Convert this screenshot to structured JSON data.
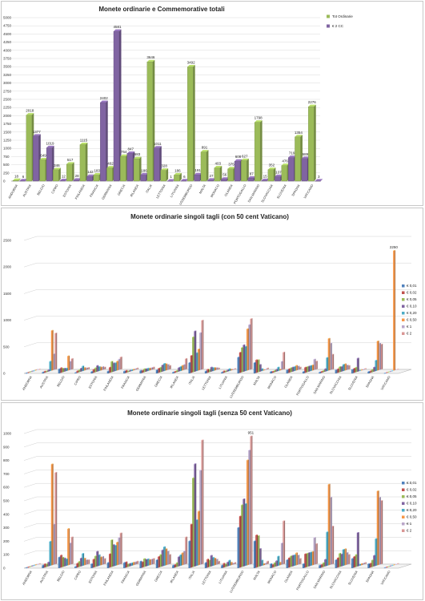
{
  "chart_data": [
    {
      "type": "bar",
      "title": "Monete ordinarie e Commemorative totali",
      "ylim": [
        0,
        5000
      ],
      "yticks": [
        0,
        250,
        500,
        750,
        1000,
        1250,
        1500,
        1750,
        2000,
        2250,
        2500,
        2750,
        3000,
        3250,
        3500,
        3750,
        4000,
        4250,
        4500,
        4750,
        5000
      ],
      "legend_position": "right",
      "categories": [
        "ANDORRA",
        "AUSTRIA",
        "BELGIO",
        "CIPRO",
        "ESTONIA",
        "FINLANDIA",
        "FRANCIA",
        "GERMANIA",
        "GRECIA",
        "IRLANDA",
        "ITALIA",
        "LETTONIA",
        "LITUANIA",
        "LUSSEMBURGO",
        "MALTA",
        "MONACO",
        "OLANDA",
        "PORTOGALLO",
        "SAN MARINO",
        "SLOVACCHIA",
        "SLOVENIA",
        "SPAGNA",
        "VATICANO"
      ],
      "series": [
        {
          "name": "Tot Ordinarie",
          "color": "#9bbb59",
          "values": [
            18,
            2018,
            649,
            346,
            517,
            1115,
            183,
            402,
            754,
            683,
            3646,
            328,
            186,
            3492,
            891,
            403,
            375,
            627,
            1798,
            352,
            476,
            1354,
            2276
          ]
        },
        {
          "name": "€ 2 CC",
          "color": "#8064a2",
          "values": [
            6,
            1377,
            1019,
            12,
            28,
            142,
            2402,
            4581,
            847,
            186,
            1011,
            1,
            6,
            191,
            27,
            56,
            608,
            87,
            15,
            137,
            719,
            689,
            3
          ]
        }
      ]
    },
    {
      "type": "bar",
      "title": "Monete ordinarie singoli tagli (con 50 cent Vaticano)",
      "ylim": [
        0,
        2500
      ],
      "yticks": [
        0,
        500,
        1000,
        1500,
        2000,
        2500
      ],
      "legend_position": "right",
      "categories": [
        "ANDORRA",
        "AUSTRIA",
        "BELGIO",
        "CIPRO",
        "ESTONIA",
        "FINLANDIA",
        "FRANCIA",
        "GERMANIA",
        "GRECIA",
        "IRLANDA",
        "ITALIA",
        "LETTONIA",
        "LITUANIA",
        "LUSSEMBURGO",
        "MALTA",
        "MONACO",
        "OLANDA",
        "PORTOGALLO",
        "SAN MARINO",
        "SLOVACCHIA",
        "SLOVENIA",
        "SPAGNA",
        "VATICANO"
      ],
      "series_names": [
        "€ 0,01",
        "€ 0,02",
        "€ 0,05",
        "€ 0,10",
        "€ 0,20",
        "€ 0,50",
        "€ 1",
        "€ 2"
      ],
      "series_colors": [
        "#4f81bd",
        "#c0504d",
        "#9bbb59",
        "#8064a2",
        "#4bacc6",
        "#f79646",
        "#b9a6c9",
        "#d99694"
      ],
      "values": [
        [
          2,
          2,
          2,
          2,
          2,
          2,
          2,
          2
        ],
        [
          20,
          25,
          20,
          30,
          180,
          750,
          300,
          680
        ],
        [
          80,
          90,
          70,
          60,
          50,
          270,
          160,
          200
        ],
        [
          10,
          30,
          40,
          60,
          90,
          50,
          35,
          30
        ],
        [
          30,
          60,
          80,
          110,
          80,
          60,
          60,
          40
        ],
        [
          40,
          100,
          200,
          160,
          150,
          170,
          200,
          230
        ],
        [
          40,
          40,
          20,
          20,
          20,
          20,
          20,
          20
        ],
        [
          50,
          40,
          60,
          50,
          50,
          40,
          40,
          40
        ],
        [
          60,
          80,
          90,
          120,
          140,
          120,
          100,
          70
        ],
        [
          20,
          20,
          30,
          70,
          80,
          90,
          100,
          200
        ],
        [
          200,
          320,
          660,
          760,
          340,
          400,
          700,
          920
        ],
        [
          40,
          60,
          50,
          80,
          60,
          50,
          40,
          20
        ],
        [
          20,
          30,
          20,
          30,
          40,
          20,
          10,
          10
        ],
        [
          300,
          380,
          460,
          500,
          460,
          780,
          850,
          950
        ],
        [
          200,
          240,
          230,
          130,
          40,
          10,
          10,
          20
        ],
        [
          30,
          20,
          30,
          40,
          70,
          20,
          160,
          320
        ],
        [
          60,
          70,
          80,
          80,
          80,
          90,
          70,
          40
        ],
        [
          30,
          100,
          100,
          100,
          100,
          100,
          200,
          150
        ],
        [
          20,
          20,
          30,
          50,
          250,
          600,
          500,
          280
        ],
        [
          60,
          70,
          100,
          90,
          120,
          120,
          90,
          70
        ],
        [
          70,
          80,
          90,
          250,
          10,
          10,
          10,
          10
        ],
        [
          30,
          30,
          50,
          80,
          200,
          550,
          500,
          470
        ],
        [
          2,
          2,
          2,
          2,
          2,
          2250,
          2,
          2
        ]
      ],
      "data_labels": [
        {
          "category": "VATICANO",
          "series": "€ 0,50",
          "text": "2250"
        }
      ]
    },
    {
      "type": "bar",
      "title": "Monete ordinarie singoli tagli (senza 50 cent Vaticano)",
      "ylim": [
        0,
        1000
      ],
      "yticks": [
        0,
        100,
        200,
        300,
        400,
        500,
        600,
        700,
        800,
        900,
        1000
      ],
      "legend_position": "right",
      "categories": [
        "ANDORRA",
        "AUSTRIA",
        "BELGIO",
        "CIPRO",
        "ESTONIA",
        "FINLANDIA",
        "FRANCIA",
        "GERMANIA",
        "GRECIA",
        "IRLANDA",
        "ITALIA",
        "LETTONIA",
        "LITUANIA",
        "LUSSEMBURGO",
        "MALTA",
        "MONACO",
        "OLANDA",
        "PORTOGALLO",
        "SAN MARINO",
        "SLOVACCHIA",
        "SLOVENIA",
        "SPAGNA",
        "VATICANO"
      ],
      "series_names": [
        "€ 0,01",
        "€ 0,02",
        "€ 0,05",
        "€ 0,10",
        "€ 0,20",
        "€ 0,50",
        "€ 1",
        "€ 2"
      ],
      "series_colors": [
        "#4f81bd",
        "#c0504d",
        "#9bbb59",
        "#8064a2",
        "#4bacc6",
        "#f79646",
        "#b9a6c9",
        "#d99694"
      ],
      "values": [
        [
          2,
          2,
          2,
          2,
          2,
          2,
          2,
          2
        ],
        [
          20,
          25,
          20,
          30,
          180,
          750,
          300,
          680
        ],
        [
          80,
          90,
          70,
          60,
          50,
          270,
          160,
          200
        ],
        [
          10,
          30,
          40,
          60,
          90,
          50,
          35,
          30
        ],
        [
          30,
          60,
          80,
          110,
          80,
          60,
          60,
          40
        ],
        [
          40,
          100,
          200,
          160,
          150,
          170,
          200,
          230
        ],
        [
          40,
          40,
          20,
          20,
          20,
          20,
          20,
          20
        ],
        [
          50,
          40,
          60,
          50,
          50,
          40,
          40,
          40
        ],
        [
          60,
          80,
          90,
          120,
          140,
          120,
          100,
          70
        ],
        [
          20,
          20,
          30,
          70,
          80,
          90,
          100,
          200
        ],
        [
          200,
          320,
          660,
          760,
          340,
          400,
          700,
          920
        ],
        [
          40,
          60,
          50,
          80,
          60,
          50,
          40,
          20
        ],
        [
          20,
          30,
          20,
          30,
          40,
          20,
          10,
          10
        ],
        [
          300,
          380,
          460,
          500,
          460,
          780,
          850,
          950
        ],
        [
          200,
          240,
          230,
          130,
          40,
          10,
          10,
          20
        ],
        [
          30,
          20,
          30,
          40,
          70,
          20,
          160,
          320
        ],
        [
          60,
          70,
          80,
          80,
          80,
          90,
          70,
          40
        ],
        [
          30,
          100,
          100,
          100,
          100,
          100,
          200,
          150
        ],
        [
          20,
          20,
          30,
          50,
          250,
          600,
          500,
          280
        ],
        [
          60,
          70,
          100,
          90,
          120,
          120,
          90,
          70
        ],
        [
          70,
          80,
          90,
          250,
          10,
          10,
          10,
          10
        ],
        [
          30,
          30,
          50,
          80,
          200,
          550,
          500,
          470
        ],
        [
          2,
          2,
          2,
          2,
          2,
          2,
          2,
          2
        ]
      ],
      "data_labels": [
        {
          "category": "LUSSEMBURGO",
          "series": "€ 2",
          "text": "951"
        }
      ]
    }
  ]
}
